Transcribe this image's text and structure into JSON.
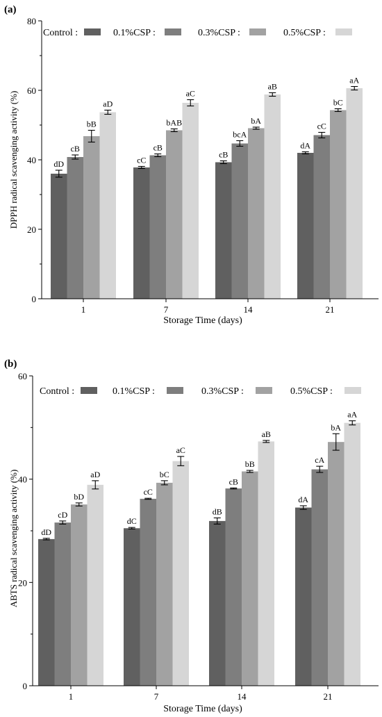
{
  "charts": [
    {
      "panel_label": "(a)",
      "legend": [
        {
          "label": "Control",
          "sep": ":",
          "color": "#606060"
        },
        {
          "label": "0.1%CSP",
          "sep": ":",
          "color": "#7e7e7e"
        },
        {
          "label": "0.3%CSP",
          "sep": ":",
          "color": "#a2a2a2"
        },
        {
          "label": "0.5%CSP",
          "sep": ":",
          "color": "#d6d6d6"
        }
      ],
      "xlabel": "Storage Time (days)",
      "ylabel": "DPPH radical scavenging activity (%)",
      "yticks": [
        "0",
        "20",
        "40",
        "60",
        "80"
      ]
    },
    {
      "panel_label": "(b)",
      "legend": [
        {
          "label": "Control",
          "sep": ":",
          "color": "#606060"
        },
        {
          "label": "0.1%CSP",
          "sep": ":",
          "color": "#7e7e7e"
        },
        {
          "label": "0.3%CSP",
          "sep": ":",
          "color": "#a2a2a2"
        },
        {
          "label": "0.5%CSP",
          "sep": ":",
          "color": "#d6d6d6"
        }
      ],
      "xlabel": "Storage Time (days)",
      "ylabel": "ABTS radical scavenging activity (%)",
      "yticks": [
        "0",
        "20",
        "40",
        "60"
      ]
    }
  ],
  "chart_data": [
    {
      "type": "bar",
      "categories": [
        "1",
        "7",
        "14",
        "21"
      ],
      "ylim": [
        0,
        80
      ],
      "grid": false,
      "legend_position": "top",
      "series": [
        {
          "name": "Control",
          "values": [
            36.0,
            37.8,
            39.3,
            42.0
          ],
          "errors": [
            1.0,
            0.3,
            0.4,
            0.3
          ],
          "labels": [
            "dD",
            "cC",
            "cB",
            "dA"
          ]
        },
        {
          "name": "0.1%CSP",
          "values": [
            40.8,
            41.3,
            44.7,
            47.1
          ],
          "errors": [
            0.6,
            0.4,
            0.8,
            0.8
          ],
          "labels": [
            "cB",
            "cB",
            "bcA",
            "cC"
          ]
        },
        {
          "name": "0.3%CSP",
          "values": [
            46.8,
            48.5,
            49.1,
            54.3
          ],
          "errors": [
            1.7,
            0.4,
            0.3,
            0.4
          ],
          "labels": [
            "bB",
            "bAB",
            "bA",
            "bC"
          ]
        },
        {
          "name": "0.5%CSP",
          "values": [
            53.7,
            56.4,
            58.8,
            60.6
          ],
          "errors": [
            0.6,
            0.9,
            0.5,
            0.5
          ],
          "labels": [
            "aD",
            "aC",
            "aB",
            "aA"
          ]
        }
      ]
    },
    {
      "type": "bar",
      "categories": [
        "1",
        "7",
        "14",
        "21"
      ],
      "ylim": [
        0,
        60
      ],
      "grid": false,
      "legend_position": "top",
      "series": [
        {
          "name": "Control",
          "values": [
            28.4,
            30.5,
            31.9,
            34.5
          ],
          "errors": [
            0.15,
            0.15,
            0.6,
            0.35
          ],
          "labels": [
            "dD",
            "dC",
            "dB",
            "dA"
          ]
        },
        {
          "name": "0.1%CSP",
          "values": [
            31.6,
            36.2,
            38.2,
            41.9
          ],
          "errors": [
            0.3,
            0.1,
            0.1,
            0.6
          ],
          "labels": [
            "cD",
            "cC",
            "cB",
            "cA"
          ]
        },
        {
          "name": "0.3%CSP",
          "values": [
            35.1,
            39.3,
            41.5,
            47.2
          ],
          "errors": [
            0.3,
            0.4,
            0.2,
            1.6
          ],
          "labels": [
            "bD",
            "bC",
            "bB",
            "bA"
          ]
        },
        {
          "name": "0.5%CSP",
          "values": [
            38.9,
            43.5,
            47.3,
            50.9
          ],
          "errors": [
            0.8,
            0.9,
            0.2,
            0.4
          ],
          "labels": [
            "aD",
            "aC",
            "aB",
            "aA"
          ]
        }
      ]
    }
  ]
}
